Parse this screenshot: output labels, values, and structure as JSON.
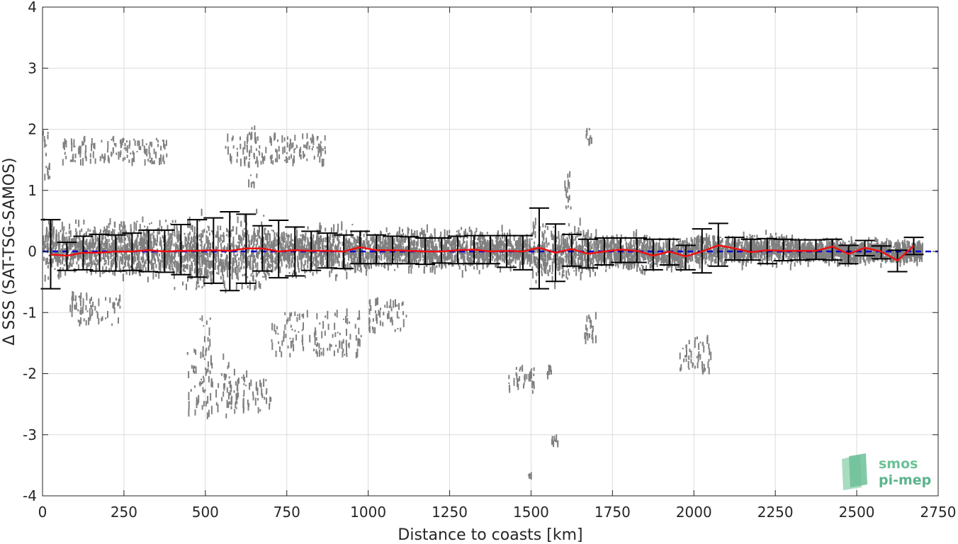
{
  "chart_data": {
    "type": "scatter",
    "title": "",
    "xlabel": "Distance to coasts [km]",
    "ylabel": "Δ SSS (SAT-TSG-SAMOS)",
    "xlim": [
      0,
      2750
    ],
    "ylim": [
      -4,
      4
    ],
    "xticks": [
      0,
      250,
      500,
      750,
      1000,
      1250,
      1500,
      1750,
      2000,
      2250,
      2500,
      2750
    ],
    "yticks": [
      -4,
      -3,
      -2,
      -1,
      0,
      1,
      2,
      3,
      4
    ],
    "grid": true,
    "zero_line": {
      "y": 0,
      "color": "#0000cc",
      "style": "dashed"
    },
    "scatter_color": "#808080",
    "errorbar_color": "#000000",
    "mean_line_color": "#ee1111",
    "errorbars": {
      "x": [
        25,
        75,
        125,
        175,
        225,
        275,
        325,
        375,
        425,
        475,
        525,
        575,
        625,
        675,
        725,
        775,
        825,
        875,
        925,
        975,
        1025,
        1075,
        1125,
        1175,
        1225,
        1275,
        1325,
        1375,
        1425,
        1475,
        1525,
        1575,
        1625,
        1675,
        1725,
        1775,
        1825,
        1875,
        1925,
        1975,
        2025,
        2075,
        2125,
        2175,
        2225,
        2275,
        2325,
        2375,
        2425,
        2475,
        2525,
        2575,
        2625,
        2675
      ],
      "mean": [
        -0.05,
        -0.07,
        -0.02,
        -0.02,
        0.0,
        0.0,
        0.02,
        0.0,
        0.01,
        0.01,
        0.02,
        0.01,
        0.05,
        0.05,
        0.0,
        0.02,
        0.01,
        0.01,
        0.0,
        0.07,
        0.02,
        0.02,
        0.01,
        0.0,
        0.0,
        0.02,
        0.03,
        0.0,
        0.01,
        0.0,
        0.06,
        -0.02,
        0.04,
        -0.04,
        0.0,
        0.03,
        0.01,
        -0.07,
        0.0,
        -0.08,
        0.0,
        0.1,
        0.05,
        -0.01,
        0.02,
        0.01,
        0.01,
        0.01,
        0.08,
        -0.04,
        0.06,
        0.0,
        -0.15,
        0.09
      ],
      "upper": [
        0.52,
        0.15,
        0.25,
        0.28,
        0.27,
        0.3,
        0.35,
        0.35,
        0.44,
        0.52,
        0.55,
        0.65,
        0.61,
        0.42,
        0.51,
        0.4,
        0.33,
        0.3,
        0.27,
        0.33,
        0.27,
        0.25,
        0.24,
        0.22,
        0.22,
        0.25,
        0.26,
        0.26,
        0.26,
        0.26,
        0.71,
        0.45,
        0.28,
        0.2,
        0.22,
        0.22,
        0.22,
        0.2,
        0.2,
        0.1,
        0.37,
        0.46,
        0.23,
        0.2,
        0.21,
        0.2,
        0.19,
        0.19,
        0.2,
        0.1,
        0.18,
        0.09,
        0.02,
        0.23
      ],
      "lower": [
        -0.61,
        -0.31,
        -0.3,
        -0.32,
        -0.32,
        -0.31,
        -0.33,
        -0.34,
        -0.38,
        -0.42,
        -0.52,
        -0.64,
        -0.52,
        -0.32,
        -0.43,
        -0.4,
        -0.31,
        -0.27,
        -0.28,
        -0.2,
        -0.2,
        -0.2,
        -0.2,
        -0.21,
        -0.19,
        -0.2,
        -0.2,
        -0.2,
        -0.26,
        -0.3,
        -0.61,
        -0.49,
        -0.24,
        -0.27,
        -0.22,
        -0.18,
        -0.18,
        -0.3,
        -0.22,
        -0.3,
        -0.35,
        -0.24,
        -0.14,
        -0.14,
        -0.2,
        -0.15,
        -0.14,
        -0.13,
        -0.14,
        -0.2,
        -0.07,
        -0.12,
        -0.33,
        -0.05
      ]
    },
    "scatter_bands": [
      {
        "x0": 0,
        "x1": 60,
        "lo": -0.6,
        "hi": 0.7
      },
      {
        "x0": 60,
        "x1": 200,
        "lo": -0.45,
        "hi": 0.55
      },
      {
        "x0": 200,
        "x1": 400,
        "lo": -0.55,
        "hi": 0.6
      },
      {
        "x0": 400,
        "x1": 700,
        "lo": -0.8,
        "hi": 0.7
      },
      {
        "x0": 700,
        "x1": 1000,
        "lo": -0.5,
        "hi": 0.5
      },
      {
        "x0": 1000,
        "x1": 1500,
        "lo": -0.4,
        "hi": 0.45
      },
      {
        "x0": 1500,
        "x1": 1700,
        "lo": -0.6,
        "hi": 0.55
      },
      {
        "x0": 1700,
        "x1": 2000,
        "lo": -0.4,
        "hi": 0.35
      },
      {
        "x0": 2000,
        "x1": 2300,
        "lo": -0.3,
        "hi": 0.35
      },
      {
        "x0": 2300,
        "x1": 2700,
        "lo": -0.25,
        "hi": 0.25
      }
    ],
    "scatter_outliers": [
      {
        "x0": 0,
        "x1": 20,
        "lo": 1.2,
        "hi": 1.95
      },
      {
        "x0": 60,
        "x1": 380,
        "lo": 1.45,
        "hi": 1.85
      },
      {
        "x0": 560,
        "x1": 870,
        "lo": 1.45,
        "hi": 1.9
      },
      {
        "x0": 630,
        "x1": 660,
        "lo": 1.0,
        "hi": 2.1
      },
      {
        "x0": 1665,
        "x1": 1685,
        "lo": 1.75,
        "hi": 2.02
      },
      {
        "x0": 1600,
        "x1": 1620,
        "lo": 0.6,
        "hi": 1.3
      },
      {
        "x0": 440,
        "x1": 600,
        "lo": -2.7,
        "hi": -1.6
      },
      {
        "x0": 560,
        "x1": 700,
        "lo": -2.6,
        "hi": -2.0
      },
      {
        "x0": 480,
        "x1": 520,
        "lo": -2.2,
        "hi": -1.0
      },
      {
        "x0": 1430,
        "x1": 1510,
        "lo": -2.3,
        "hi": -1.9
      },
      {
        "x0": 1560,
        "x1": 1580,
        "lo": -3.15,
        "hi": -3.05
      },
      {
        "x0": 1545,
        "x1": 1560,
        "lo": -2.1,
        "hi": -1.9
      },
      {
        "x0": 1490,
        "x1": 1500,
        "lo": -3.68,
        "hi": -3.62
      },
      {
        "x0": 1950,
        "x1": 2050,
        "lo": -2.05,
        "hi": -1.4
      },
      {
        "x0": 1660,
        "x1": 1700,
        "lo": -1.5,
        "hi": -1.0
      },
      {
        "x0": 700,
        "x1": 980,
        "lo": -1.7,
        "hi": -1.0
      },
      {
        "x0": 80,
        "x1": 240,
        "lo": -1.2,
        "hi": -0.7
      },
      {
        "x0": 1000,
        "x1": 1120,
        "lo": -1.3,
        "hi": -0.8
      }
    ]
  },
  "logo": {
    "line1": "smos",
    "line2": "pi-mep",
    "colors": [
      "#8fd0a8",
      "#5ab48a",
      "#2f8f6a"
    ]
  }
}
